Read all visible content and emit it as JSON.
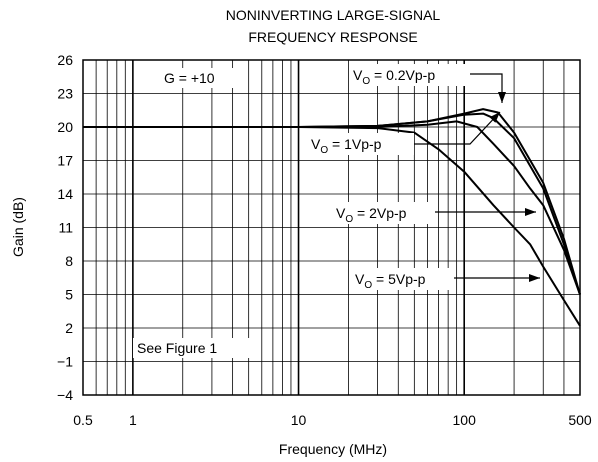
{
  "chart_data": {
    "type": "line",
    "title_line1": "NONINVERTING LARGE-SIGNAL",
    "title_line2": "FREQUENCY RESPONSE",
    "xlabel": "Frequency (MHz)",
    "ylabel": "Gain (dB)",
    "x_scale": "log",
    "xlim": [
      0.5,
      500
    ],
    "ylim": [
      -4,
      26
    ],
    "grid": true,
    "x_ticks": [
      {
        "value": 0.5,
        "label": "0.5"
      },
      {
        "value": 1,
        "label": "1"
      },
      {
        "value": 10,
        "label": "10"
      },
      {
        "value": 100,
        "label": "100"
      },
      {
        "value": 500,
        "label": "500"
      }
    ],
    "y_ticks": [
      {
        "value": 26,
        "label": "26"
      },
      {
        "value": 23,
        "label": "23"
      },
      {
        "value": 20,
        "label": "20"
      },
      {
        "value": 17,
        "label": "17"
      },
      {
        "value": 14,
        "label": "14"
      },
      {
        "value": 11,
        "label": "11"
      },
      {
        "value": 8,
        "label": "8"
      },
      {
        "value": 5,
        "label": "5"
      },
      {
        "value": 2,
        "label": "2"
      },
      {
        "value": -1,
        "label": "−1"
      },
      {
        "value": -4,
        "label": "−4"
      }
    ],
    "annotations": {
      "gain": "G = +10",
      "see_figure": "See Figure 1"
    },
    "series": [
      {
        "label_main": "V",
        "label_sub": "O",
        "label_rest": " = 0.2Vp-p",
        "x": [
          0.5,
          10,
          30,
          60,
          100,
          130,
          160,
          200,
          300,
          400,
          500
        ],
        "y": [
          20,
          20,
          20.1,
          20.5,
          21.2,
          21.6,
          21.3,
          19.5,
          15.0,
          10.0,
          5.0
        ]
      },
      {
        "label_main": "V",
        "label_sub": "O",
        "label_rest": " = 1Vp-p",
        "x": [
          0.5,
          10,
          30,
          60,
          100,
          130,
          150,
          200,
          300,
          400,
          500
        ],
        "y": [
          20,
          20,
          20.1,
          20.5,
          21.1,
          21.2,
          20.8,
          19.0,
          14.5,
          9.5,
          5.0
        ]
      },
      {
        "label_main": "V",
        "label_sub": "O",
        "label_rest": " = 2Vp-p",
        "x": [
          0.5,
          10,
          30,
          60,
          90,
          120,
          150,
          200,
          250,
          300,
          400,
          500
        ],
        "y": [
          20,
          20,
          20.0,
          20.2,
          20.5,
          20.0,
          18.5,
          16.5,
          14.5,
          13.0,
          9.0,
          5.0
        ]
      },
      {
        "label_main": "V",
        "label_sub": "O",
        "label_rest": " = 5Vp-p",
        "x": [
          0.5,
          10,
          30,
          50,
          70,
          100,
          150,
          200,
          250,
          300,
          400,
          500
        ],
        "y": [
          20,
          20,
          19.9,
          19.5,
          18.0,
          16.0,
          13.0,
          11.0,
          9.5,
          7.5,
          4.5,
          2.2
        ]
      }
    ]
  }
}
